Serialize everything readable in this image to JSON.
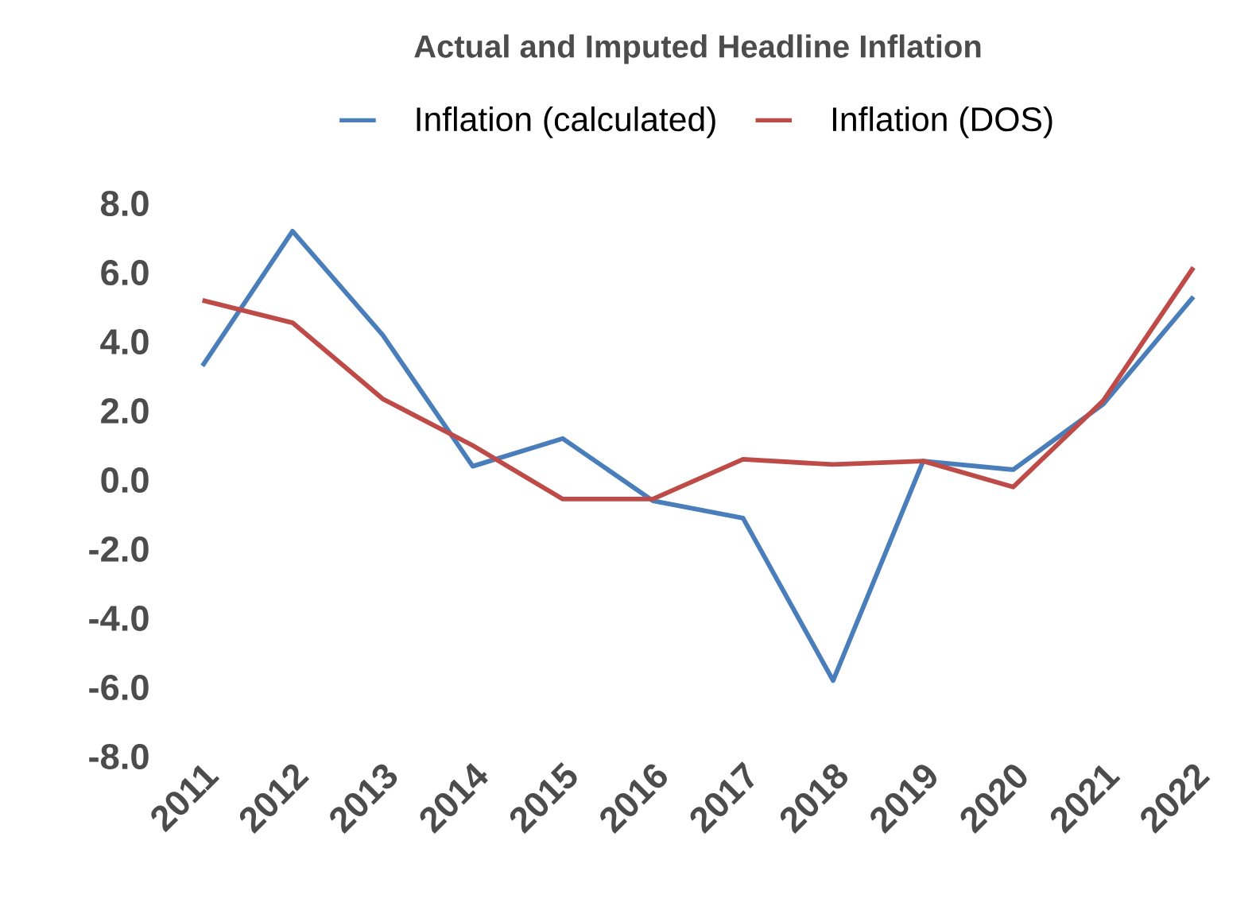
{
  "chart_data": {
    "type": "line",
    "title": "Actual and Imputed Headline Inflation",
    "categories": [
      "2011",
      "2012",
      "2013",
      "2014",
      "2015",
      "2016",
      "2017",
      "2018",
      "2019",
      "2020",
      "2021",
      "2022"
    ],
    "series": [
      {
        "name": "Inflation (calculated)",
        "color": "#4a7ebb",
        "values": [
          3.3,
          7.2,
          4.2,
          0.4,
          1.2,
          -0.6,
          -1.1,
          -5.8,
          0.55,
          0.3,
          2.2,
          5.3
        ]
      },
      {
        "name": "Inflation (DOS)",
        "color": "#be4b48",
        "values": [
          5.2,
          4.55,
          2.35,
          1.0,
          -0.55,
          -0.55,
          0.6,
          0.45,
          0.55,
          -0.2,
          2.3,
          6.15
        ]
      }
    ],
    "ylim": [
      -8,
      8
    ],
    "yticks": [
      {
        "value": -8,
        "label": "-8.0"
      },
      {
        "value": -6,
        "label": "-6.0"
      },
      {
        "value": -4,
        "label": "-4.0"
      },
      {
        "value": -2,
        "label": "-2.0"
      },
      {
        "value": 0,
        "label": "0.0"
      },
      {
        "value": 2,
        "label": "2.0"
      },
      {
        "value": 4,
        "label": "4.0"
      },
      {
        "value": 6,
        "label": "6.0"
      },
      {
        "value": 8,
        "label": "8.0"
      }
    ],
    "grid": false,
    "legend": "top",
    "marker": "none",
    "line_style": "solid"
  }
}
